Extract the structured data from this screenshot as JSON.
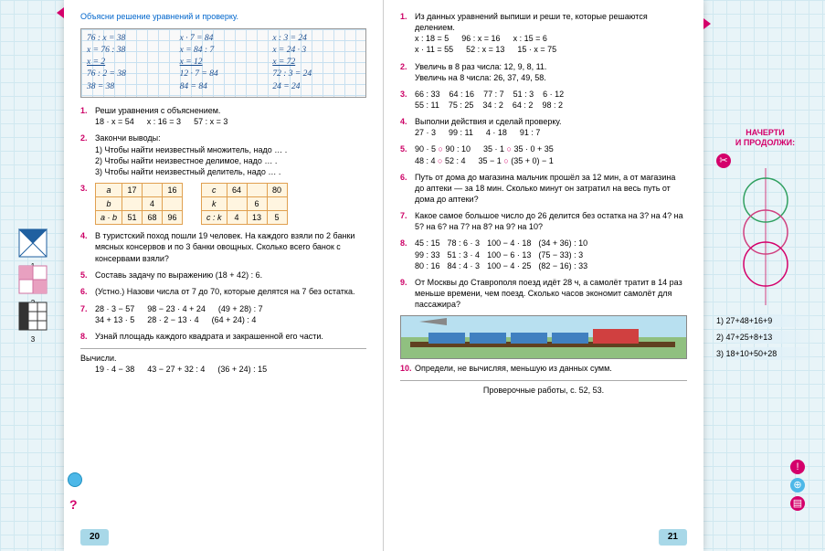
{
  "left": {
    "heading": "Объясни решение уравнений и проверку.",
    "hw": {
      "r1c1": "76 : x = 38",
      "r1c2": "x · 7 = 84",
      "r1c3": "x : 3 = 24",
      "r2c1": "x = 76 : 38",
      "r2c2": "x = 84 : 7",
      "r2c3": "x = 24 · 3",
      "r3c1": "x = 2",
      "r3c2": "x = 12",
      "r3c3": "x = 72",
      "r4c1": "76 : 2 = 38",
      "r4c2": "12 · 7 = 84",
      "r4c3": "72 : 3 = 24",
      "r5c1": "38 = 38",
      "r5c2": "84 = 84",
      "r5c3": "24 = 24"
    },
    "t1": {
      "text": "Реши уравнения с объяснением.",
      "c1": "18 · x = 54",
      "c2": "x : 16 = 3",
      "c3": "57 : x = 3"
    },
    "t2": {
      "text": "Закончи выводы:",
      "l1": "1) Чтобы найти неизвестный множитель, надо … .",
      "l2": "2) Чтобы найти неизвестное делимое, надо … .",
      "l3": "3) Чтобы найти неизвестный делитель, надо … ."
    },
    "t3": {
      "a_lbl": "a",
      "a1": "17",
      "a2": "",
      "a3": "16",
      "b_lbl": "b",
      "b1": "",
      "b2": "4",
      "b3": "",
      "ab_lbl": "a · b",
      "ab1": "51",
      "ab2": "68",
      "ab3": "96",
      "c_lbl": "c",
      "c1": "64",
      "c2": "",
      "c3": "80",
      "k_lbl": "k",
      "k1": "",
      "k2": "6",
      "k3": "",
      "ck_lbl": "c : k",
      "ck1": "4",
      "ck2": "13",
      "ck3": "5"
    },
    "t4": "В туристский поход пошли 19 человек. На каждого взяли по 2 банки мясных консервов и по 3 банки овощных. Сколько всего банок с консервами взяли?",
    "t5": "Составь задачу по выражению (18 + 42) : 6.",
    "t6": "(Устно.) Назови числа от 7 до 70, которые делятся на 7 без остатка.",
    "t7": {
      "r1c1": "28 · 3 − 57",
      "r1c2": "98 − 23 · 4 + 24",
      "r1c3": "(49 + 28) : 7",
      "r2c1": "34 + 13 · 5",
      "r2c2": "28 · 2 − 13 · 4",
      "r2c3": "(64 + 24) : 4"
    },
    "t8": "Узнай площадь каждого квадрата и закрашенной его части.",
    "calc_lbl": "Вычисли.",
    "calc": {
      "c1": "19 · 4 − 38",
      "c2": "43 − 27 + 32 : 4",
      "c3": "(36 + 24) : 15"
    },
    "pagenum": "20",
    "shapes": {
      "l1": "1",
      "l2": "2",
      "l3": "3"
    }
  },
  "right": {
    "t1": {
      "text": "Из данных уравнений выпиши и реши те, которые решаются делением.",
      "r1c1": "x : 18 = 5",
      "r1c2": "96 : x = 16",
      "r1c3": "x : 15 = 6",
      "r2c1": "x · 11 = 55",
      "r2c2": "52 : x = 13",
      "r2c3": "15 · x = 75"
    },
    "t2": {
      "l1": "Увеличь в 8 раз числа: 12, 9, 8, 11.",
      "l2": "Увеличь на 8 числа: 26, 37, 49, 58."
    },
    "t3": {
      "r1c1": "66 : 33",
      "r1c2": "64 : 16",
      "r1c3": "77 : 7",
      "r1c4": "51 : 3",
      "r1c5": "6 · 12",
      "r2c1": "55 : 11",
      "r2c2": "75 : 25",
      "r2c3": "34 : 2",
      "r2c4": "64 : 2",
      "r2c5": "98 : 2"
    },
    "t4": {
      "text": "Выполни действия и сделай проверку.",
      "c1": "27 · 3",
      "c2": "99 : 11",
      "c3": "4 · 18",
      "c4": "91 : 7"
    },
    "t5": {
      "r1c1": "90 · 5 ○ 90 : 10",
      "r1c2": "35 · 1 ○ 35 · 0 + 35",
      "r2c1": "48 : 4 ○ 52 : 4",
      "r2c2": "35 − 1 ○ (35 + 0) − 1"
    },
    "t6": "Путь от дома до магазина мальчик прошёл за 12 мин, а от магазина до аптеки — за 18 мин. Сколько минут он затратил на весь путь от дома до аптеки?",
    "t7": "Какое самое большое число до 26 делится без остатка на 3? на 4? на 5? на 6? на 7? на 8? на 9? на 10?",
    "t8": {
      "r1c1": "45 : 15",
      "r1c2": "78 : 6 · 3",
      "r1c3": "100 − 4 · 18",
      "r1c4": "(34 + 36) : 10",
      "r2c1": "99 : 33",
      "r2c2": "51 : 3 · 4",
      "r2c3": "100 − 6 · 13",
      "r2c4": "(75 − 33) : 3",
      "r3c1": "80 : 16",
      "r3c2": "84 : 4 · 3",
      "r3c3": "100 − 4 · 25",
      "r3c4": "(82 − 16) : 33"
    },
    "t9": "От Москвы до Ставрополя поезд идёт 28 ч, а самолёт тратит в 14 раз меньше времени, чем поезд. Сколько часов экономит самолёт для пассажира?",
    "t10": "Определи, не вычисляя, меньшую из данных сумм.",
    "check": "Проверочные работы, с. 52, 53.",
    "pagenum": "21"
  },
  "sidebar": {
    "title1": "НАЧЕРТИ",
    "title2": "И ПРОДОЛЖИ:",
    "e1": "1) 27+48+16+9",
    "e2": "2) 47+25+8+13",
    "e3": "3) 18+10+50+28"
  }
}
